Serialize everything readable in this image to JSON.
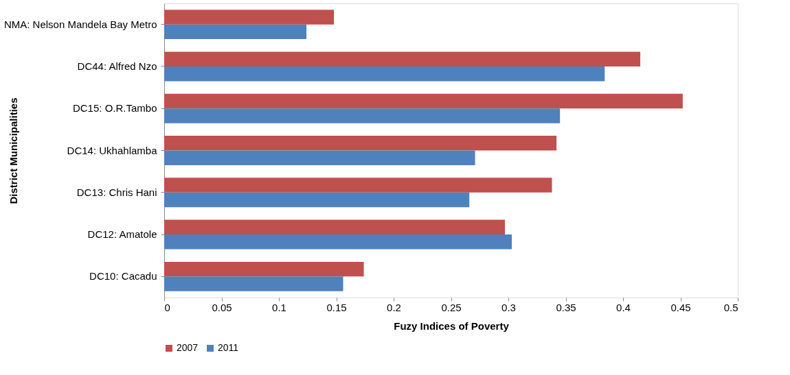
{
  "chart_data": {
    "type": "bar",
    "orientation": "horizontal",
    "xlabel": "Fuzy Indices of Poverty",
    "ylabel": "District Municipalities",
    "categories": [
      "NMA: Nelson Mandela Bay Metro",
      "DC44: Alfred Nzo",
      "DC15: O.R.Tambo",
      "DC14: Ukhahlamba",
      "DC13: Chris Hani",
      "DC12: Amatole",
      "DC10: Cacadu"
    ],
    "series": [
      {
        "name": "2007",
        "color": "#c0504d",
        "values": [
          0.148,
          0.415,
          0.452,
          0.342,
          0.338,
          0.297,
          0.174
        ]
      },
      {
        "name": "2011",
        "color": "#4f81bd",
        "values": [
          0.124,
          0.384,
          0.345,
          0.271,
          0.266,
          0.303,
          0.156
        ]
      }
    ],
    "xlim": [
      0,
      0.5
    ],
    "xticks": [
      0,
      0.05,
      0.1,
      0.15,
      0.2,
      0.25,
      0.3,
      0.35,
      0.4,
      0.45,
      0.5
    ],
    "grid": false,
    "legend": "bottom"
  }
}
